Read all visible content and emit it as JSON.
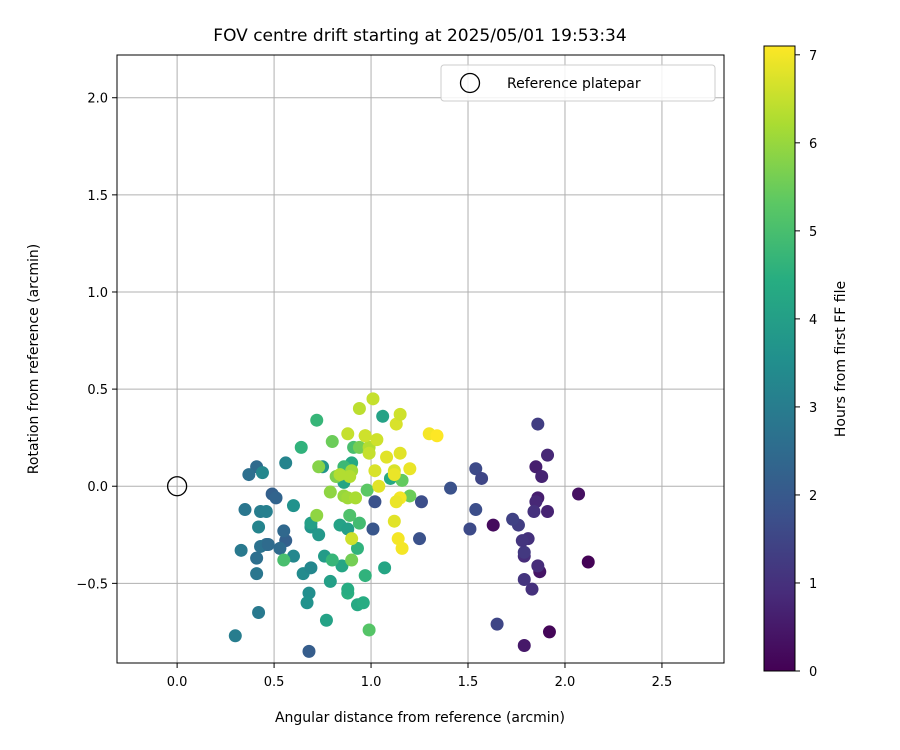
{
  "chart_data": {
    "type": "scatter",
    "title": "FOV centre drift starting at 2025/05/01 19:53:34",
    "xlabel": "Angular distance from reference (arcmin)",
    "ylabel": "Rotation from reference (arcmin)",
    "xlim": [
      -0.31,
      2.82
    ],
    "ylim": [
      -0.91,
      2.22
    ],
    "xticks": [
      "0.0",
      "0.5",
      "1.0",
      "1.5",
      "2.0",
      "2.5"
    ],
    "yticks": [
      "−0.5",
      "0.0",
      "0.5",
      "1.0",
      "1.5",
      "2.0"
    ],
    "grid": true,
    "legend": {
      "placement": "top-right",
      "entries": [
        "Reference platepar"
      ]
    },
    "reference_point": {
      "x": 0.0,
      "y": 0.0
    },
    "colorbar": {
      "label": "Hours from first FF file",
      "range": [
        0,
        7.1
      ],
      "ticks": [
        "0",
        "1",
        "2",
        "3",
        "4",
        "5",
        "6",
        "7"
      ],
      "colormap": "viridis"
    },
    "points": [
      [
        2.12,
        -0.39,
        0.05
      ],
      [
        1.92,
        -0.75,
        0.1
      ],
      [
        2.07,
        -0.04,
        0.3
      ],
      [
        1.63,
        -0.2,
        0.2
      ],
      [
        1.87,
        -0.44,
        0.4
      ],
      [
        1.79,
        -0.82,
        0.5
      ],
      [
        1.85,
        0.1,
        0.6
      ],
      [
        1.88,
        0.05,
        0.7
      ],
      [
        1.91,
        0.16,
        0.8
      ],
      [
        1.91,
        -0.13,
        0.7
      ],
      [
        1.86,
        -0.06,
        0.6
      ],
      [
        1.85,
        -0.08,
        0.8
      ],
      [
        1.86,
        -0.41,
        0.9
      ],
      [
        1.84,
        -0.13,
        1.0
      ],
      [
        1.83,
        -0.53,
        1.0
      ],
      [
        1.79,
        -0.48,
        1.1
      ],
      [
        1.81,
        -0.27,
        1.0
      ],
      [
        1.79,
        -0.36,
        0.9
      ],
      [
        1.79,
        -0.34,
        1.2
      ],
      [
        1.78,
        -0.28,
        1.1
      ],
      [
        1.76,
        -0.2,
        1.3
      ],
      [
        1.73,
        -0.17,
        1.4
      ],
      [
        1.86,
        0.32,
        1.3
      ],
      [
        1.65,
        -0.71,
        1.5
      ],
      [
        1.54,
        0.09,
        1.6
      ],
      [
        1.57,
        0.04,
        1.5
      ],
      [
        1.54,
        -0.12,
        1.7
      ],
      [
        1.51,
        -0.22,
        1.6
      ],
      [
        1.41,
        -0.01,
        1.8
      ],
      [
        1.25,
        -0.27,
        1.8
      ],
      [
        1.26,
        -0.08,
        1.7
      ],
      [
        1.02,
        -0.08,
        1.8
      ],
      [
        1.01,
        -0.22,
        1.9
      ],
      [
        0.68,
        -0.85,
        2.1
      ],
      [
        0.49,
        -0.04,
        2.2
      ],
      [
        0.51,
        -0.06,
        2.3
      ],
      [
        0.56,
        -0.28,
        2.2
      ],
      [
        0.55,
        -0.23,
        2.4
      ],
      [
        0.53,
        -0.32,
        2.5
      ],
      [
        0.46,
        -0.3,
        2.6
      ],
      [
        0.43,
        -0.31,
        2.7
      ],
      [
        0.47,
        -0.3,
        2.5
      ],
      [
        0.41,
        -0.37,
        2.6
      ],
      [
        0.41,
        -0.45,
        2.8
      ],
      [
        0.42,
        -0.65,
        2.9
      ],
      [
        0.41,
        0.1,
        2.5
      ],
      [
        0.37,
        0.06,
        2.6
      ],
      [
        0.35,
        -0.12,
        2.8
      ],
      [
        0.33,
        -0.33,
        2.9
      ],
      [
        0.3,
        -0.77,
        3.0
      ],
      [
        0.43,
        -0.13,
        3.0
      ],
      [
        0.46,
        -0.13,
        3.1
      ],
      [
        0.42,
        -0.21,
        3.2
      ],
      [
        0.44,
        0.07,
        3.3
      ],
      [
        0.56,
        0.12,
        3.2
      ],
      [
        0.6,
        -0.36,
        3.3
      ],
      [
        0.65,
        -0.45,
        3.4
      ],
      [
        0.69,
        -0.42,
        3.3
      ],
      [
        0.68,
        -0.55,
        3.5
      ],
      [
        0.67,
        -0.6,
        3.6
      ],
      [
        0.6,
        -0.1,
        3.6
      ],
      [
        0.69,
        -0.21,
        3.7
      ],
      [
        0.73,
        -0.25,
        3.8
      ],
      [
        0.75,
        0.1,
        3.7
      ],
      [
        0.76,
        -0.36,
        3.9
      ],
      [
        0.79,
        -0.49,
        4.0
      ],
      [
        0.77,
        -0.69,
        4.1
      ],
      [
        0.85,
        -0.41,
        4.2
      ],
      [
        0.84,
        -0.2,
        4.1
      ],
      [
        0.88,
        -0.22,
        4.0
      ],
      [
        0.86,
        0.02,
        4.2
      ],
      [
        0.9,
        0.12,
        4.3
      ],
      [
        1.06,
        0.36,
        4.1
      ],
      [
        1.07,
        -0.42,
        4.2
      ],
      [
        1.1,
        0.04,
        4.3
      ],
      [
        0.69,
        -0.19,
        4.0
      ],
      [
        0.88,
        -0.55,
        4.5
      ],
      [
        0.88,
        -0.53,
        4.4
      ],
      [
        0.93,
        -0.61,
        4.3
      ],
      [
        0.96,
        -0.6,
        4.4
      ],
      [
        0.97,
        -0.46,
        4.6
      ],
      [
        0.93,
        -0.32,
        4.6
      ],
      [
        0.8,
        -0.38,
        4.7
      ],
      [
        0.72,
        0.34,
        4.7
      ],
      [
        0.64,
        0.2,
        4.6
      ],
      [
        0.94,
        -0.19,
        4.9
      ],
      [
        0.86,
        0.1,
        4.8
      ],
      [
        0.55,
        -0.38,
        5.0
      ],
      [
        0.89,
        -0.15,
        5.1
      ],
      [
        0.91,
        0.2,
        5.0
      ],
      [
        0.99,
        -0.74,
        5.2
      ],
      [
        0.98,
        -0.02,
        5.3
      ],
      [
        1.16,
        0.03,
        5.4
      ],
      [
        1.2,
        -0.05,
        5.5
      ],
      [
        0.8,
        0.23,
        5.5
      ],
      [
        0.9,
        -0.38,
        5.6
      ],
      [
        0.94,
        0.2,
        5.6
      ],
      [
        0.82,
        0.05,
        5.7
      ],
      [
        0.73,
        0.1,
        5.8
      ],
      [
        0.72,
        -0.15,
        5.9
      ],
      [
        0.79,
        -0.03,
        5.9
      ],
      [
        0.86,
        -0.05,
        6.0
      ],
      [
        0.88,
        -0.06,
        6.1
      ],
      [
        0.9,
        0.08,
        6.1
      ],
      [
        0.92,
        -0.06,
        6.2
      ],
      [
        0.89,
        0.05,
        6.3
      ],
      [
        0.84,
        0.06,
        6.3
      ],
      [
        0.99,
        0.2,
        6.3
      ],
      [
        0.97,
        0.26,
        6.4
      ],
      [
        0.88,
        0.27,
        6.5
      ],
      [
        0.9,
        -0.27,
        6.6
      ],
      [
        0.94,
        0.4,
        6.4
      ],
      [
        1.01,
        0.45,
        6.5
      ],
      [
        1.03,
        0.24,
        6.6
      ],
      [
        1.02,
        0.08,
        6.7
      ],
      [
        1.04,
        0.0,
        6.8
      ],
      [
        1.08,
        0.15,
        6.8
      ],
      [
        1.12,
        0.08,
        6.7
      ],
      [
        1.12,
        0.06,
        6.9
      ],
      [
        1.13,
        0.32,
        6.7
      ],
      [
        1.15,
        0.37,
        6.6
      ],
      [
        1.15,
        0.17,
        6.8
      ],
      [
        1.2,
        0.09,
        6.9
      ],
      [
        1.15,
        -0.06,
        7.0
      ],
      [
        1.13,
        -0.08,
        6.9
      ],
      [
        1.12,
        -0.18,
        6.8
      ],
      [
        1.14,
        -0.27,
        7.0
      ],
      [
        1.16,
        -0.32,
        7.0
      ],
      [
        1.3,
        0.27,
        7.0
      ],
      [
        1.34,
        0.26,
        7.1
      ],
      [
        0.97,
        0.26,
        6.6
      ],
      [
        0.99,
        0.17,
        6.5
      ]
    ]
  }
}
